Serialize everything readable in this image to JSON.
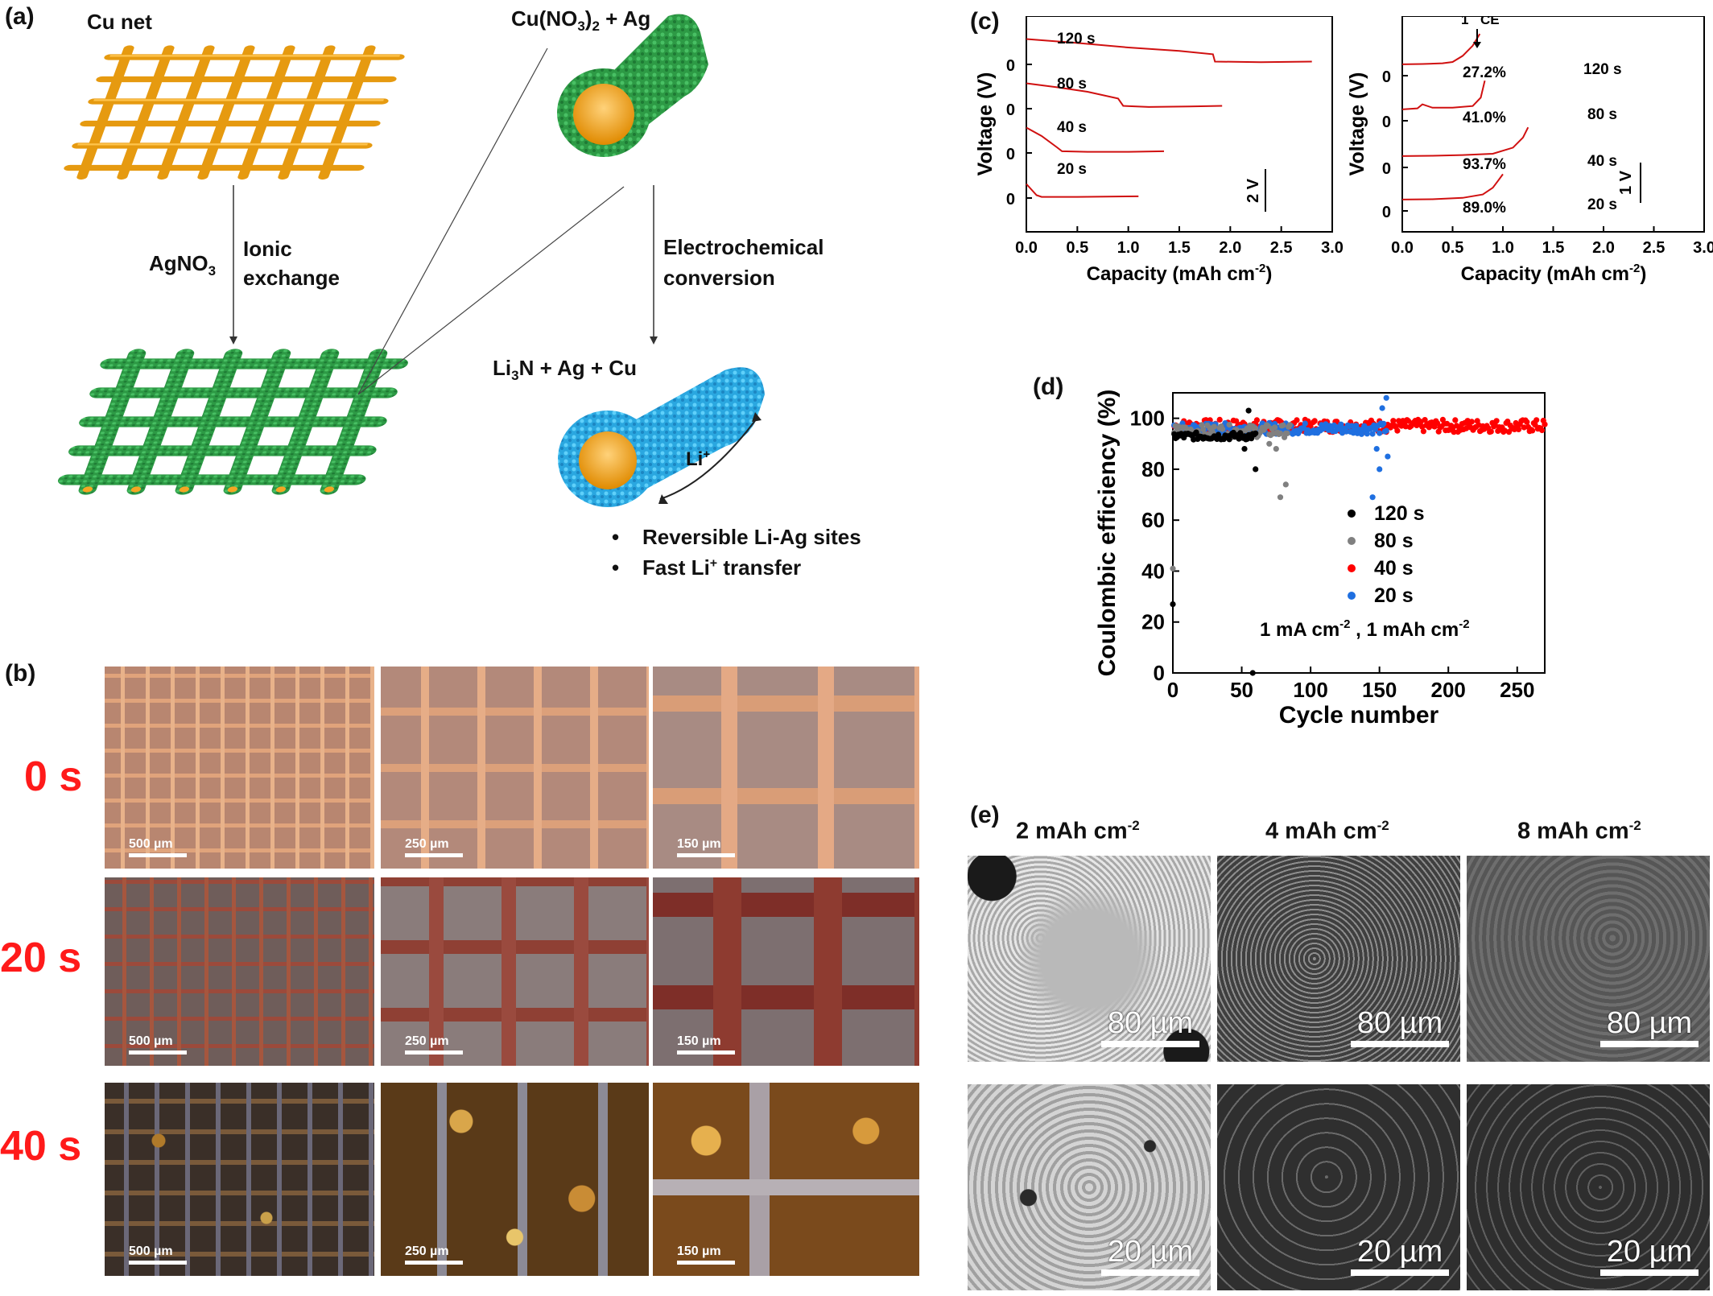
{
  "panel_a": {
    "label": "(a)",
    "cu_net": "Cu net",
    "cu_no3_ag": "Cu(NO",
    "cu_no3_sub": "3",
    "cu_no3_close": ")",
    "cu_no3_sub2": "2",
    "cu_no3_tail": " + Ag",
    "agno3": "AgNO",
    "agno3_sub": "3",
    "ionic": "Ionic",
    "exchange": "exchange",
    "electrochemical": "Electrochemical",
    "conversion": "conversion",
    "li3n_a": "Li",
    "li3n_sub": "3",
    "li3n_b": "N + Ag + Cu",
    "li_plus": "Li",
    "li_plus_sup": "+",
    "bullet1": "Reversible Li-Ag sites",
    "bullet2_a": "Fast Li",
    "bullet2_sup": "+",
    "bullet2_b": " transfer",
    "colors": {
      "copper": "#f5a623",
      "green": "#2fa84f",
      "blue": "#29aee6"
    }
  },
  "panel_b": {
    "label": "(b)",
    "rows": [
      {
        "time": "0 s",
        "scales": [
          "500 µm",
          "250 µm",
          "150 µm"
        ]
      },
      {
        "time": "20 s",
        "scales": [
          "500 µm",
          "250 µm",
          "150 µm"
        ]
      },
      {
        "time": "40 s",
        "scales": [
          "500 µm",
          "250 µm",
          "150 µm"
        ]
      }
    ]
  },
  "panel_c": {
    "label": "(c)",
    "left": {
      "ylabel": "Voltage (V)",
      "xlabel": "Capacity (mAh cm",
      "xlabel_sup": "-2",
      "xlabel_close": ")",
      "xticks": [
        "0.0",
        "0.5",
        "1.0",
        "1.5",
        "2.0",
        "2.5",
        "3.0"
      ],
      "curves": [
        "120 s",
        "80 s",
        "40 s",
        "20 s"
      ],
      "zero": "0",
      "scalebar": "2 V"
    },
    "right": {
      "ylabel": "Voltage (V)",
      "xlabel": "Capacity (mAh cm",
      "xlabel_sup": "-2",
      "xlabel_close": ")",
      "xticks": [
        "0.0",
        "0.5",
        "1.0",
        "1.5",
        "2.0",
        "2.5",
        "3.0"
      ],
      "ce_a": "1",
      "ce_sup": "st",
      "ce_b": " CE",
      "curves": [
        {
          "time": "120 s",
          "ce": "27.2%"
        },
        {
          "time": "80 s",
          "ce": "41.0%"
        },
        {
          "time": "40 s",
          "ce": "93.7%"
        },
        {
          "time": "20 s",
          "ce": "89.0%"
        }
      ],
      "zero": "0",
      "scalebar": "1 V"
    }
  },
  "panel_d": {
    "label": "(d)",
    "ylabel": "Coulombic efficiency (%)",
    "xlabel": "Cycle number",
    "xticks": [
      "0",
      "50",
      "100",
      "150",
      "200",
      "250"
    ],
    "yticks": [
      "0",
      "20",
      "40",
      "60",
      "80",
      "100"
    ],
    "legend": [
      {
        "name": "120 s",
        "color": "#000000"
      },
      {
        "name": "80 s",
        "color": "#808080"
      },
      {
        "name": "40 s",
        "color": "#ff0000"
      },
      {
        "name": "20 s",
        "color": "#1f6fe0"
      }
    ],
    "condition_a": "1 mA cm",
    "condition_sup1": "-2",
    "condition_b": " , 1 mAh cm",
    "condition_sup2": "-2"
  },
  "panel_e": {
    "label": "(e)",
    "columns": [
      {
        "a": "2 mAh cm",
        "sup": "-2"
      },
      {
        "a": "4 mAh cm",
        "sup": "-2"
      },
      {
        "a": "8 mAh cm",
        "sup": "-2"
      }
    ],
    "scales_top": [
      "80 µm",
      "80 µm",
      "80 µm"
    ],
    "scales_bottom": [
      "20 µm",
      "20 µm",
      "20 µm"
    ]
  },
  "chart_data": [
    {
      "type": "line",
      "title": "",
      "xlabel": "Capacity (mAh cm-2)",
      "ylabel": "Voltage (V)",
      "xlim": [
        0,
        3.0
      ],
      "series": [
        {
          "name": "120 s",
          "x": [
            0,
            0.5,
            1.0,
            1.5,
            1.83,
            1.85,
            2.3,
            2.8
          ],
          "y": [
            0.45,
            0.38,
            0.3,
            0.24,
            0.18,
            0.05,
            0.04,
            0.05
          ]
        },
        {
          "name": "80 s",
          "x": [
            0,
            0.3,
            0.6,
            0.9,
            0.95,
            1.2,
            1.6,
            1.92
          ],
          "y": [
            0.45,
            0.38,
            0.3,
            0.18,
            0.05,
            0.03,
            0.04,
            0.05
          ]
        },
        {
          "name": "40 s",
          "x": [
            0,
            0.15,
            0.3,
            0.35,
            0.6,
            1.0,
            1.35
          ],
          "y": [
            0.45,
            0.3,
            0.1,
            0.03,
            0.02,
            0.02,
            0.03
          ]
        },
        {
          "name": "20 s",
          "x": [
            0,
            0.05,
            0.1,
            0.15,
            0.5,
            1.1
          ],
          "y": [
            0.25,
            0.15,
            0.05,
            0.02,
            0.02,
            0.03
          ]
        }
      ]
    },
    {
      "type": "line",
      "title": "",
      "xlabel": "Capacity (mAh cm-2)",
      "ylabel": "Voltage (V)",
      "xlim": [
        0,
        3.0
      ],
      "series": [
        {
          "name": "120 s",
          "ce": "27.2%",
          "x": [
            0,
            0.2,
            0.4,
            0.5,
            0.6,
            0.7,
            0.77
          ],
          "y": [
            0.05,
            0.06,
            0.08,
            0.12,
            0.3,
            0.6,
            0.95
          ]
        },
        {
          "name": "80 s",
          "ce": "41.0%",
          "x": [
            0,
            0.15,
            0.2,
            0.3,
            0.5,
            0.7,
            0.78,
            0.82
          ],
          "y": [
            0.05,
            0.08,
            0.2,
            0.1,
            0.1,
            0.15,
            0.4,
            0.9
          ]
        },
        {
          "name": "40 s",
          "ce": "93.7%",
          "x": [
            0,
            0.3,
            0.6,
            0.9,
            1.1,
            1.2,
            1.25
          ],
          "y": [
            0.05,
            0.06,
            0.08,
            0.12,
            0.3,
            0.6,
            0.9
          ]
        },
        {
          "name": "20 s",
          "ce": "89.0%",
          "x": [
            0,
            0.3,
            0.6,
            0.8,
            0.9,
            0.95,
            1.0
          ],
          "y": [
            0.05,
            0.06,
            0.1,
            0.2,
            0.4,
            0.6,
            0.8
          ]
        }
      ]
    },
    {
      "type": "scatter",
      "title": "",
      "xlabel": "Cycle number",
      "ylabel": "Coulombic efficiency (%)",
      "xlim": [
        0,
        270
      ],
      "ylim": [
        0,
        110
      ],
      "series": [
        {
          "name": "120 s",
          "color": "#000000"
        },
        {
          "name": "80 s",
          "color": "#808080"
        },
        {
          "name": "40 s",
          "color": "#ff0000"
        },
        {
          "name": "20 s",
          "color": "#1f6fe0"
        }
      ]
    }
  ]
}
